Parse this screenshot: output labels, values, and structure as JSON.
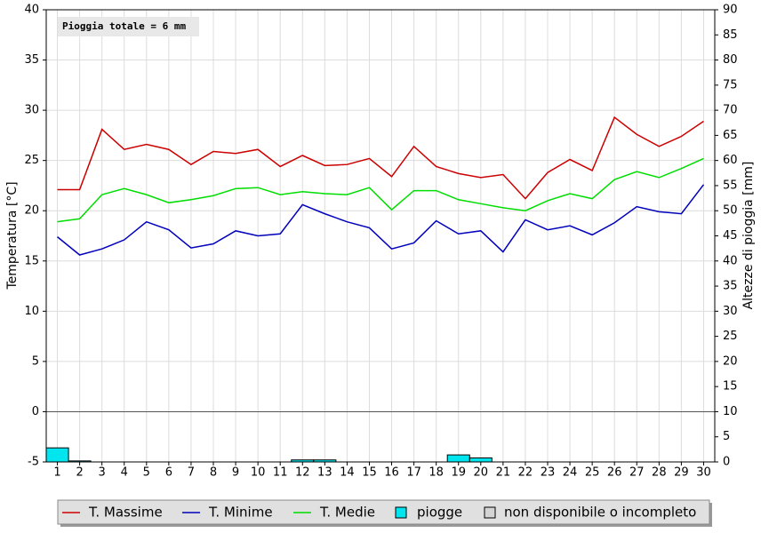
{
  "chart_data": {
    "type": "line",
    "annotation": "Pioggia totale = 6 mm",
    "y_label": "Temperatura [°C]",
    "y2_label": "Altezze di pioggia [mm]",
    "categories": [
      1,
      2,
      3,
      4,
      5,
      6,
      7,
      8,
      9,
      10,
      11,
      12,
      13,
      14,
      15,
      16,
      17,
      18,
      19,
      20,
      21,
      22,
      23,
      24,
      25,
      26,
      27,
      28,
      29,
      30
    ],
    "ylim": [
      -5,
      40
    ],
    "yticks": [
      -5,
      0,
      5,
      10,
      15,
      20,
      25,
      30,
      35,
      40
    ],
    "y2lim": [
      0,
      90
    ],
    "y2ticks": [
      0,
      5,
      10,
      15,
      20,
      25,
      30,
      35,
      40,
      45,
      50,
      55,
      60,
      65,
      70,
      75,
      80,
      85,
      90
    ],
    "grid": true,
    "series": [
      {
        "name": "T. Massime",
        "type": "line",
        "color": "#cc0000",
        "values": [
          22.1,
          22.1,
          28.1,
          26.1,
          26.6,
          26.1,
          24.6,
          25.9,
          25.7,
          26.1,
          24.4,
          25.5,
          24.5,
          24.6,
          25.2,
          23.4,
          26.4,
          24.4,
          23.7,
          23.3,
          23.6,
          21.2,
          23.8,
          25.1,
          24.0,
          29.3,
          27.6,
          26.4,
          27.4,
          28.9
        ]
      },
      {
        "name": "T. Minime",
        "type": "line",
        "color": "#0000bb",
        "values": [
          17.4,
          15.6,
          16.2,
          17.1,
          18.9,
          18.1,
          16.3,
          16.7,
          18.0,
          17.5,
          17.7,
          20.6,
          19.7,
          18.9,
          18.3,
          16.2,
          16.8,
          19.0,
          17.7,
          18.0,
          15.9,
          19.1,
          18.1,
          18.5,
          17.6,
          18.8,
          20.4,
          19.9,
          19.7,
          22.6
        ]
      },
      {
        "name": "T. Medie",
        "type": "line",
        "color": "#00dd00",
        "values": [
          18.9,
          19.2,
          21.6,
          22.2,
          21.6,
          20.8,
          21.1,
          21.5,
          22.2,
          22.3,
          21.6,
          21.9,
          21.7,
          21.6,
          22.3,
          20.1,
          22.0,
          22.0,
          21.1,
          20.7,
          20.3,
          20.0,
          21.0,
          21.7,
          21.2,
          23.1,
          23.9,
          23.3,
          24.2,
          25.2
        ]
      },
      {
        "name": "piogge",
        "type": "bar",
        "axis": "y2",
        "color": "#00e5ee",
        "values": [
          2.8,
          0.2,
          0,
          0,
          0,
          0,
          0,
          0,
          0,
          0,
          0,
          0.4,
          0.4,
          0,
          0,
          0,
          0,
          0,
          1.4,
          0.8,
          0,
          0,
          0,
          0,
          0,
          0,
          0,
          0,
          0,
          0
        ]
      }
    ],
    "missing_legend": {
      "name": "non disponibile o incompleto",
      "color": "#d4d4d4"
    }
  }
}
